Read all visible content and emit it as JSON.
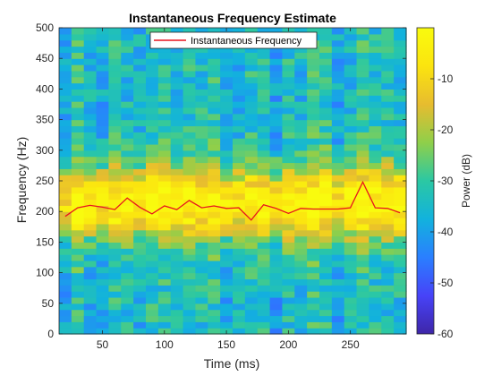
{
  "chart_data": {
    "type": "heatmap",
    "title": "Instantaneous Frequency Estimate",
    "xlabel": "Time (ms)",
    "ylabel": "Frequency (Hz)",
    "xlim": [
      15,
      295
    ],
    "ylim": [
      0,
      500
    ],
    "xticks": [
      50,
      100,
      150,
      200,
      250
    ],
    "yticks": [
      0,
      50,
      100,
      150,
      200,
      250,
      300,
      350,
      400,
      450,
      500
    ],
    "colorbar": {
      "label": "Power (dB)",
      "range": [
        -60,
        0
      ],
      "ticks": [
        -10,
        -20,
        -30,
        -40,
        -50,
        -60
      ],
      "colors": [
        "#3e26a8",
        "#4743f8",
        "#2a7fff",
        "#12b2dd",
        "#2bc8a3",
        "#8fcf4a",
        "#e7bc2f",
        "#fbe40f",
        "#f9fb0e"
      ]
    },
    "legend": {
      "location": "top",
      "entries": [
        {
          "name": "Instantaneous Frequency",
          "color": "#e8141e"
        }
      ]
    },
    "series": [
      {
        "name": "Instantaneous Frequency",
        "color": "#e8141e",
        "x": [
          20,
          30,
          40,
          50,
          60,
          70,
          80,
          90,
          100,
          110,
          120,
          130,
          140,
          150,
          160,
          170,
          180,
          190,
          200,
          210,
          220,
          230,
          240,
          250,
          260,
          270,
          280,
          290
        ],
        "y": [
          192,
          206,
          210,
          207,
          203,
          222,
          207,
          196,
          209,
          203,
          218,
          206,
          209,
          205,
          206,
          186,
          211,
          205,
          197,
          205,
          204,
          204,
          204,
          206,
          248,
          206,
          205,
          198
        ]
      }
    ],
    "spectrogram_background": {
      "time_bins": [
        20,
        30,
        40,
        50,
        60,
        70,
        80,
        90,
        100,
        110,
        120,
        130,
        140,
        150,
        160,
        170,
        180,
        190,
        200,
        210,
        220,
        230,
        240,
        250,
        260,
        270,
        280,
        290
      ],
      "peak_frequency_hz": 215,
      "peak_power_db": -3,
      "floor_power_db": -35
    }
  }
}
